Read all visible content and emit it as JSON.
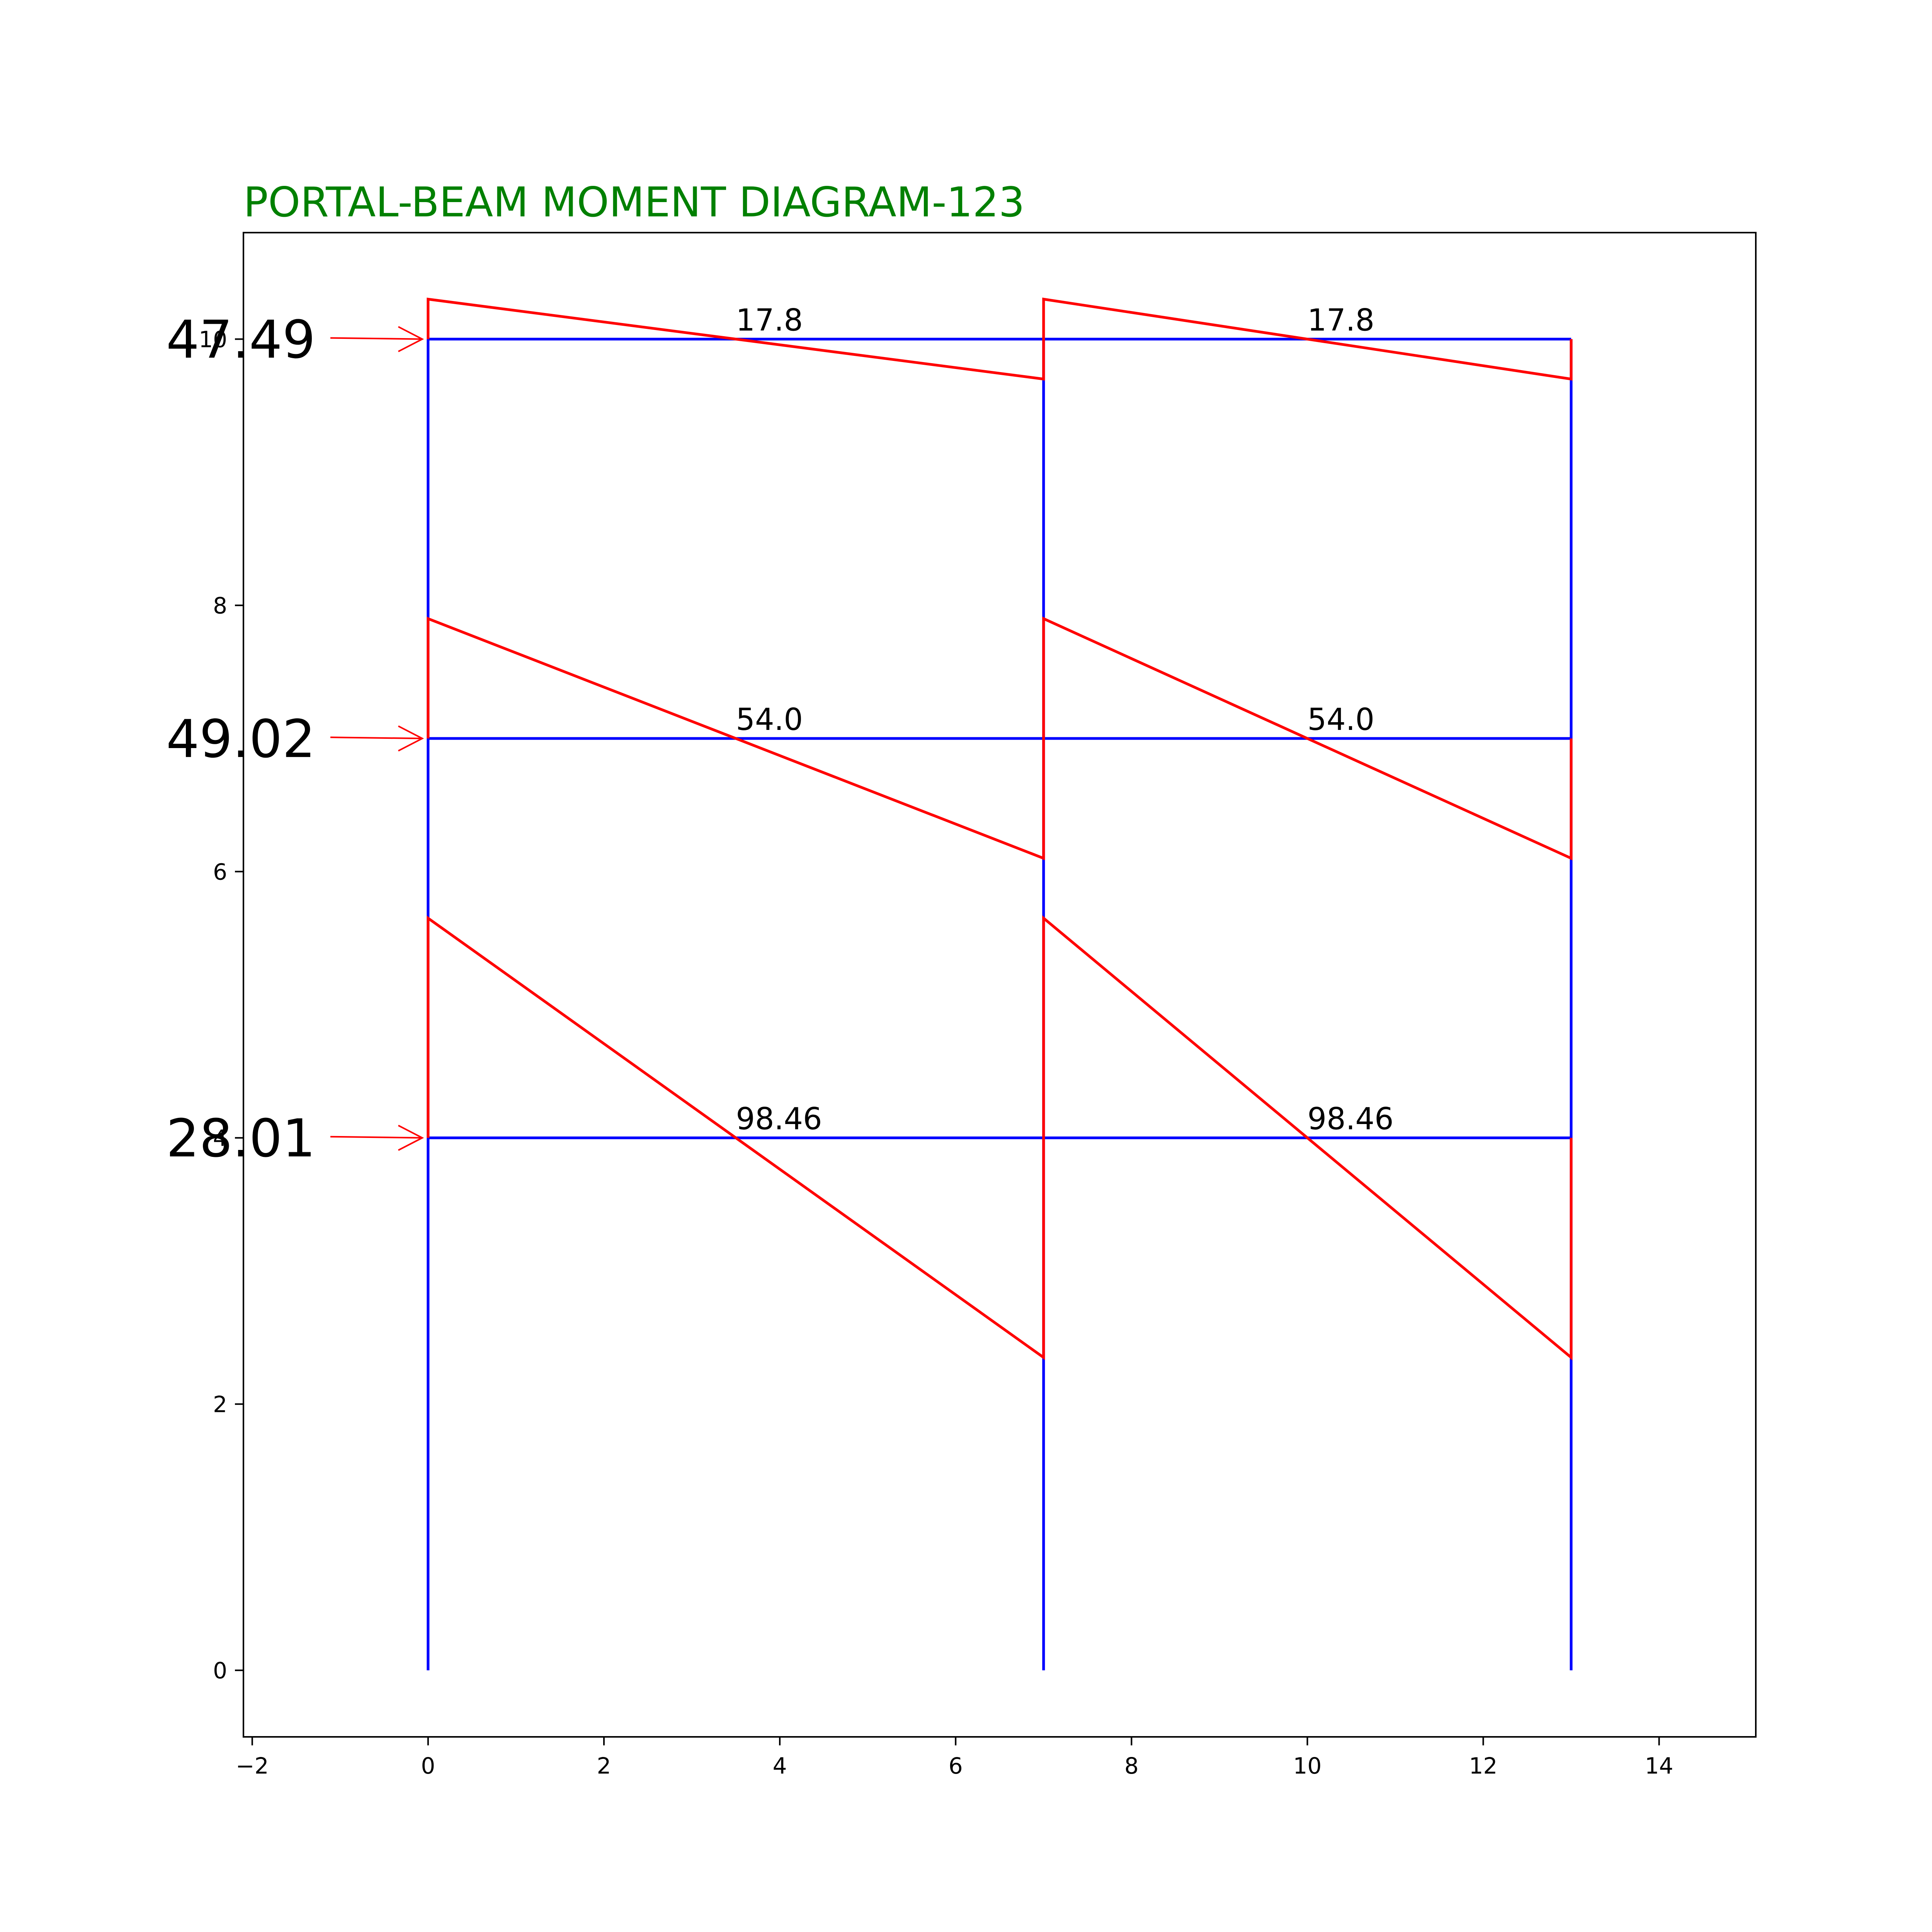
{
  "title": "PORTAL-BEAM MOMENT DIAGRAM-123",
  "colors": {
    "title": "#008000",
    "frame": "#0000ff",
    "moment": "#ff0000",
    "arrow": "#ff0000",
    "axes": "#000000"
  },
  "chart_data": {
    "type": "frame-moment-diagram",
    "xlim": [
      -2.1,
      15.1
    ],
    "ylim": [
      -0.5,
      10.8
    ],
    "x_ticks": [
      "−2",
      "0",
      "2",
      "4",
      "6",
      "8",
      "10",
      "12",
      "14"
    ],
    "y_ticks": [
      "0",
      "2",
      "4",
      "6",
      "8",
      "10"
    ],
    "grid": false,
    "column_x": [
      0,
      7,
      13
    ],
    "column_base_y": 0,
    "floors": [
      {
        "level": 4,
        "lateral_load": "28.01",
        "beam_label": "98.46",
        "moment_end_offsets": [
          1.65,
          -1.65
        ]
      },
      {
        "level": 7,
        "lateral_load": "49.02",
        "beam_label": "54.0",
        "moment_end_offsets": [
          0.9,
          -0.9
        ]
      },
      {
        "level": 10,
        "lateral_load": "47.49",
        "beam_label": "17.8",
        "moment_end_offsets": [
          0.3,
          -0.3
        ]
      }
    ]
  }
}
